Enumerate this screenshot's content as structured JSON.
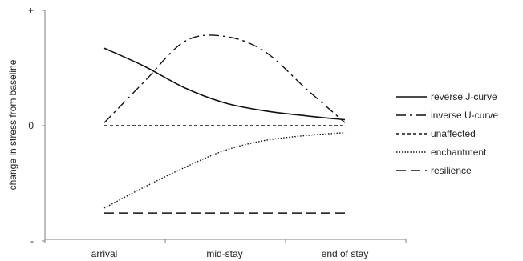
{
  "chart_data": {
    "type": "line",
    "title": "",
    "xlabel": "",
    "ylabel": "change in stress from baseline",
    "categories": [
      "arrival",
      "mid-stay",
      "end of stay"
    ],
    "y_ticks": [
      "+",
      "0",
      "-"
    ],
    "ylim": [
      -1,
      1
    ],
    "grid": false,
    "legend_position": "right",
    "series": [
      {
        "name": "reverse J-curve",
        "x": [
          0,
          0.33,
          0.67,
          1,
          1.33,
          1.67,
          2
        ],
        "values": [
          0.78,
          0.6,
          0.38,
          0.23,
          0.15,
          0.1,
          0.06
        ],
        "dash": "solid"
      },
      {
        "name": "inverse U-curve",
        "x": [
          0,
          0.33,
          0.67,
          1,
          1.33,
          1.67,
          2
        ],
        "values": [
          0.03,
          0.44,
          0.85,
          0.9,
          0.75,
          0.38,
          0.03
        ],
        "dash": "dashdot"
      },
      {
        "name": "unaffected",
        "x": [
          0,
          2
        ],
        "values": [
          0,
          0
        ],
        "dash": "short-dash"
      },
      {
        "name": "enchantment",
        "x": [
          0,
          0.33,
          0.67,
          1,
          1.33,
          1.67,
          2
        ],
        "values": [
          -0.83,
          -0.62,
          -0.42,
          -0.25,
          -0.15,
          -0.1,
          -0.07
        ],
        "dash": "dotted"
      },
      {
        "name": "resilience",
        "x": [
          0,
          2
        ],
        "values": [
          -0.88,
          -0.88
        ],
        "dash": "long-dash"
      }
    ]
  }
}
